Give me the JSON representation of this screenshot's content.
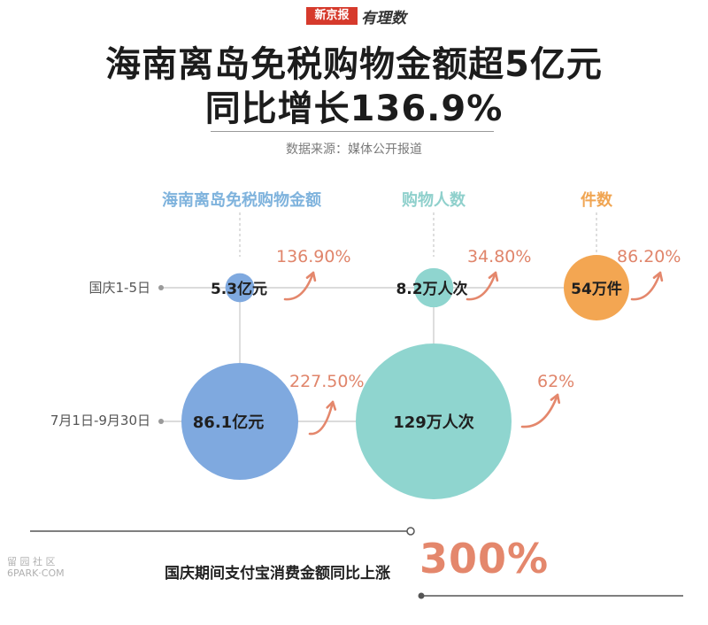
{
  "brand": {
    "paper": "新京报",
    "column": "有理数"
  },
  "title": {
    "line1": "海南离岛免税购物金额超5亿元",
    "line2": "同比增长136.9%"
  },
  "source": "数据来源：媒体公开报道",
  "colors": {
    "blue": "#7fa9df",
    "teal": "#8fd5cf",
    "orange": "#f3a652",
    "accent": "#e0856b",
    "title_blue": "#7fb3dd",
    "teal_head": "#8fd0cc",
    "orange_head": "#f0a552"
  },
  "chart_data": {
    "type": "bubble",
    "columns": [
      "海南离岛免税购物金额",
      "购物人数",
      "件数"
    ],
    "rows": [
      "国庆1-5日",
      "7月1日-9月30日"
    ],
    "cells": [
      {
        "row": 0,
        "col": 0,
        "value": 5.3,
        "unit": "亿元",
        "label": "5.3亿元",
        "growth": "136.90%",
        "color": "#7fa9df"
      },
      {
        "row": 0,
        "col": 1,
        "value": 8.2,
        "unit": "万人次",
        "label": "8.2万人次",
        "growth": "34.80%",
        "color": "#8fd5cf"
      },
      {
        "row": 0,
        "col": 2,
        "value": 54,
        "unit": "万件",
        "label": "54万件",
        "growth": "86.20%",
        "color": "#f3a652"
      },
      {
        "row": 1,
        "col": 0,
        "value": 86.1,
        "unit": "亿元",
        "label": "86.1亿元",
        "growth": "227.50%",
        "color": "#7fa9df"
      },
      {
        "row": 1,
        "col": 1,
        "value": 129,
        "unit": "万人次",
        "label": "129万人次",
        "growth": "62%",
        "color": "#8fd5cf"
      }
    ]
  },
  "footer": {
    "text": "国庆期间支付宝消费金额同比上涨",
    "value": "300%"
  },
  "watermark": {
    "line1": "留 园 社 区",
    "line2": "6PARK·COM"
  }
}
